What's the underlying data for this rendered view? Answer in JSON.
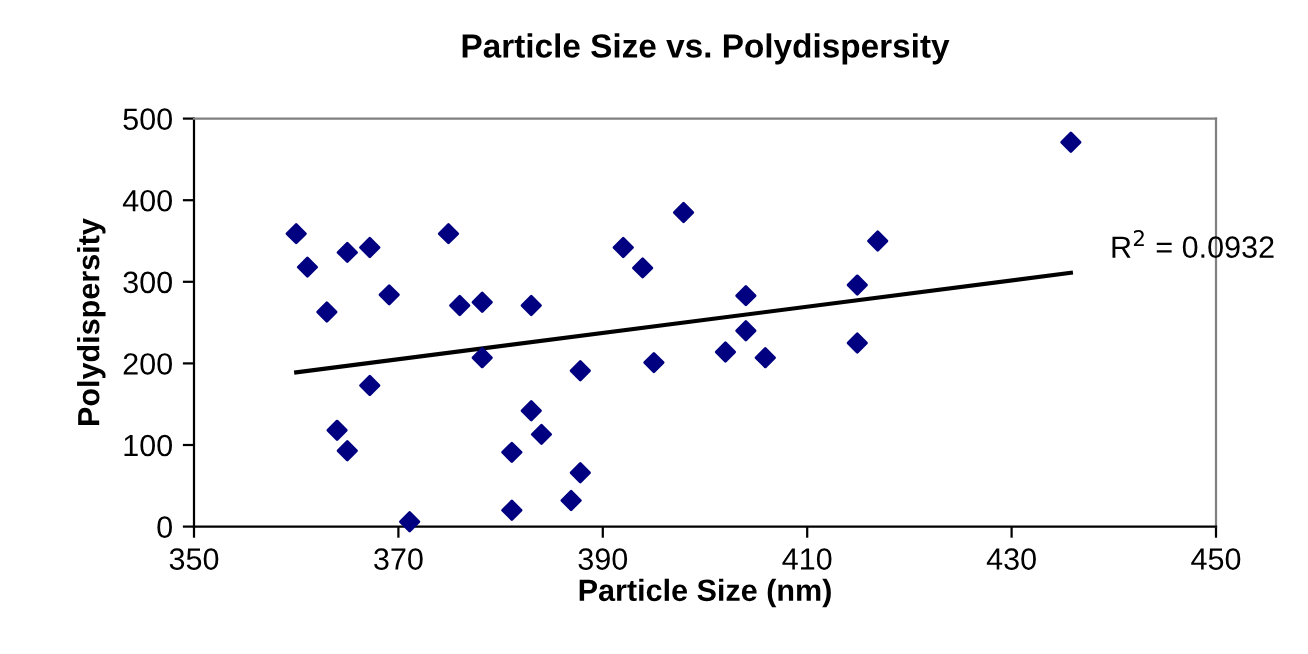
{
  "chart_data": {
    "type": "scatter",
    "title": "Particle Size vs. Polydispersity",
    "xlabel": "Particle Size (nm)",
    "ylabel": "Polydispersity",
    "xlim": [
      350,
      450
    ],
    "xticks": [
      350,
      370,
      390,
      410,
      430,
      450
    ],
    "ylim": [
      0,
      500
    ],
    "yticks": [
      0,
      100,
      200,
      300,
      400,
      500
    ],
    "grid": false,
    "legend": false,
    "marker": "diamond",
    "annotations": [
      "R$^{2}$ = 0.0932"
    ],
    "series": [
      {
        "color": "#000080",
        "x": [
          360.0,
          361.1,
          363.0,
          364.0,
          365.0,
          365.0,
          367.2,
          367.2,
          369.1,
          371.1,
          374.9,
          376.0,
          378.2,
          378.2,
          383.0,
          383.0,
          381.1,
          384.0,
          381.1,
          387.8,
          387.8,
          386.9,
          392.0,
          393.9,
          397.9,
          395.0,
          402.0,
          404.0,
          404.0,
          405.9,
          414.9,
          414.9,
          416.9,
          435.8
        ],
        "values": [
          359,
          318,
          263,
          118,
          336,
          93,
          342,
          173,
          284,
          6,
          359,
          271,
          275,
          207,
          271,
          142,
          91,
          113,
          20,
          191,
          66,
          32,
          342,
          317,
          385,
          201,
          214,
          283,
          240,
          207,
          296,
          225,
          350,
          471
        ]
      },
      {
        "type": "line",
        "color": "#000000",
        "x": [
          360.0,
          435.8
        ],
        "values": [
          189,
          311
        ],
        "marker": "none",
        "line_style": "solid"
      }
    ]
  }
}
